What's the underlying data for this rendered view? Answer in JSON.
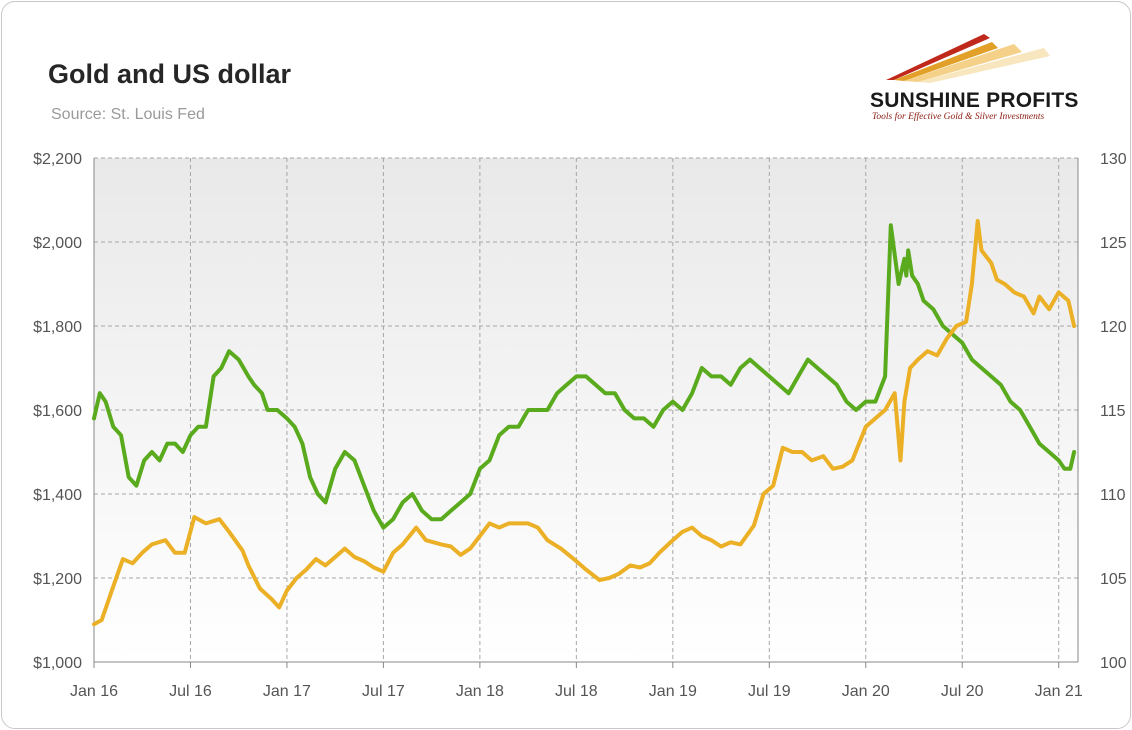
{
  "header": {
    "title": "Gold and US dollar",
    "subtitle": "Source: St. Louis Fed"
  },
  "logo": {
    "name": "SUNSHINE PROFITS",
    "tagline": "Tools for Effective Gold & Silver Investments"
  },
  "colors": {
    "gold": "#ebb025",
    "dollar": "#5aaa1e",
    "grid": "#a6a6a6",
    "plot_top": "#e9e9e9",
    "plot_bottom": "#ffffff"
  },
  "chart_data": {
    "type": "line",
    "title": "Gold and US dollar",
    "subtitle": "Source: St. Louis Fed",
    "grid": true,
    "x_ticks": [
      "Jan 16",
      "Jul 16",
      "Jan 17",
      "Jul 17",
      "Jan 18",
      "Jul 18",
      "Jan 19",
      "Jul 19",
      "Jan 20",
      "Jul 20",
      "Jan 21"
    ],
    "x_range": [
      "2016-01",
      "2021-02"
    ],
    "y_left": {
      "range": [
        1000,
        2200
      ],
      "ticks": [
        "$1,000",
        "$1,200",
        "$1,400",
        "$1,600",
        "$1,800",
        "$2,000",
        "$2,200"
      ]
    },
    "y_right": {
      "range": [
        100,
        130
      ],
      "ticks": [
        "100",
        "105",
        "110",
        "115",
        "120",
        "125",
        "130"
      ]
    },
    "series": [
      {
        "key": "gold",
        "axis": "left",
        "x": [
          2016.0,
          2016.04,
          2016.1,
          2016.15,
          2016.2,
          2016.25,
          2016.3,
          2016.37,
          2016.42,
          2016.47,
          2016.52,
          2016.58,
          2016.65,
          2016.7,
          2016.77,
          2016.8,
          2016.86,
          2016.92,
          2016.96,
          2017.0,
          2017.05,
          2017.1,
          2017.15,
          2017.2,
          2017.25,
          2017.3,
          2017.35,
          2017.4,
          2017.45,
          2017.5,
          2017.55,
          2017.6,
          2017.67,
          2017.72,
          2017.8,
          2017.85,
          2017.9,
          2017.95,
          2018.0,
          2018.05,
          2018.1,
          2018.15,
          2018.2,
          2018.25,
          2018.3,
          2018.35,
          2018.42,
          2018.5,
          2018.55,
          2018.62,
          2018.67,
          2018.72,
          2018.78,
          2018.83,
          2018.88,
          2018.93,
          2019.0,
          2019.05,
          2019.1,
          2019.15,
          2019.2,
          2019.25,
          2019.3,
          2019.35,
          2019.42,
          2019.47,
          2019.52,
          2019.57,
          2019.62,
          2019.67,
          2019.72,
          2019.78,
          2019.83,
          2019.88,
          2019.93,
          2020.0,
          2020.05,
          2020.1,
          2020.15,
          2020.18,
          2020.2,
          2020.23,
          2020.27,
          2020.32,
          2020.37,
          2020.42,
          2020.47,
          2020.52,
          2020.55,
          2020.58,
          2020.6,
          2020.65,
          2020.68,
          2020.72,
          2020.77,
          2020.82,
          2020.87,
          2020.9,
          2020.95,
          2021.0,
          2021.05,
          2021.08
        ],
        "values": [
          1090,
          1100,
          1180,
          1245,
          1235,
          1260,
          1280,
          1290,
          1260,
          1260,
          1345,
          1330,
          1340,
          1310,
          1265,
          1230,
          1175,
          1150,
          1130,
          1170,
          1200,
          1220,
          1245,
          1230,
          1250,
          1270,
          1250,
          1240,
          1225,
          1215,
          1260,
          1280,
          1320,
          1290,
          1280,
          1275,
          1255,
          1270,
          1300,
          1330,
          1320,
          1330,
          1330,
          1330,
          1320,
          1290,
          1270,
          1240,
          1220,
          1195,
          1200,
          1210,
          1230,
          1225,
          1235,
          1260,
          1290,
          1310,
          1320,
          1300,
          1290,
          1275,
          1285,
          1280,
          1325,
          1400,
          1420,
          1510,
          1500,
          1500,
          1480,
          1490,
          1460,
          1465,
          1480,
          1560,
          1580,
          1600,
          1640,
          1480,
          1620,
          1700,
          1720,
          1740,
          1730,
          1770,
          1800,
          1810,
          1900,
          2050,
          1980,
          1950,
          1910,
          1900,
          1880,
          1870,
          1830,
          1870,
          1840,
          1880,
          1860,
          1800
        ]
      },
      {
        "key": "dollar",
        "axis": "right",
        "x": [
          2016.0,
          2016.03,
          2016.06,
          2016.1,
          2016.14,
          2016.18,
          2016.22,
          2016.26,
          2016.3,
          2016.34,
          2016.38,
          2016.42,
          2016.46,
          2016.5,
          2016.54,
          2016.58,
          2016.62,
          2016.66,
          2016.7,
          2016.75,
          2016.8,
          2016.83,
          2016.87,
          2016.9,
          2016.95,
          2017.0,
          2017.04,
          2017.08,
          2017.12,
          2017.16,
          2017.2,
          2017.25,
          2017.3,
          2017.35,
          2017.4,
          2017.45,
          2017.5,
          2017.55,
          2017.6,
          2017.65,
          2017.7,
          2017.75,
          2017.8,
          2017.85,
          2017.9,
          2017.95,
          2018.0,
          2018.05,
          2018.1,
          2018.15,
          2018.2,
          2018.25,
          2018.3,
          2018.35,
          2018.4,
          2018.45,
          2018.5,
          2018.55,
          2018.6,
          2018.65,
          2018.7,
          2018.75,
          2018.8,
          2018.85,
          2018.9,
          2018.95,
          2019.0,
          2019.05,
          2019.1,
          2019.15,
          2019.2,
          2019.25,
          2019.3,
          2019.35,
          2019.4,
          2019.45,
          2019.5,
          2019.55,
          2019.6,
          2019.65,
          2019.7,
          2019.75,
          2019.8,
          2019.85,
          2019.9,
          2019.95,
          2020.0,
          2020.05,
          2020.1,
          2020.13,
          2020.17,
          2020.2,
          2020.21,
          2020.22,
          2020.24,
          2020.27,
          2020.3,
          2020.35,
          2020.4,
          2020.45,
          2020.5,
          2020.55,
          2020.6,
          2020.65,
          2020.7,
          2020.75,
          2020.8,
          2020.85,
          2020.9,
          2020.95,
          2021.0,
          2021.03,
          2021.06,
          2021.08
        ],
        "values": [
          114.5,
          116.0,
          115.5,
          114.0,
          113.5,
          111.0,
          110.5,
          112.0,
          112.5,
          112.0,
          113.0,
          113.0,
          112.5,
          113.5,
          114.0,
          114.0,
          117.0,
          117.5,
          118.5,
          118.0,
          117.0,
          116.5,
          116.0,
          115.0,
          115.0,
          114.5,
          114.0,
          113.0,
          111.0,
          110.0,
          109.5,
          111.5,
          112.5,
          112.0,
          110.5,
          109.0,
          108.0,
          108.5,
          109.5,
          110.0,
          109.0,
          108.5,
          108.5,
          109.0,
          109.5,
          110.0,
          111.5,
          112.0,
          113.5,
          114.0,
          114.0,
          115.0,
          115.0,
          115.0,
          116.0,
          116.5,
          117.0,
          117.0,
          116.5,
          116.0,
          116.0,
          115.0,
          114.5,
          114.5,
          114.0,
          115.0,
          115.5,
          115.0,
          116.0,
          117.5,
          117.0,
          117.0,
          116.5,
          117.5,
          118.0,
          117.5,
          117.0,
          116.5,
          116.0,
          117.0,
          118.0,
          117.5,
          117.0,
          116.5,
          115.5,
          115.0,
          115.5,
          115.5,
          117.0,
          126.0,
          122.5,
          124.0,
          123.0,
          124.5,
          123.0,
          122.5,
          121.5,
          121.0,
          120.0,
          119.5,
          119.0,
          118.0,
          117.5,
          117.0,
          116.5,
          115.5,
          115.0,
          114.0,
          113.0,
          112.5,
          112.0,
          111.5,
          111.5,
          112.5
        ]
      }
    ]
  }
}
